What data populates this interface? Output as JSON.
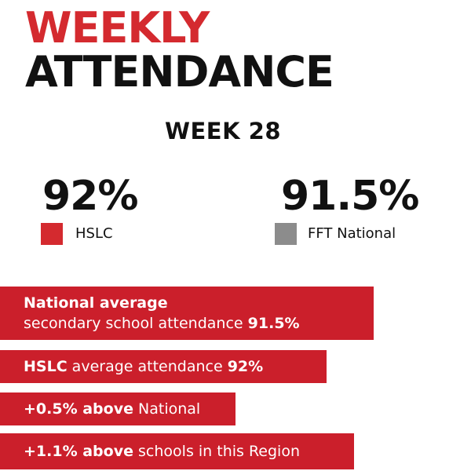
{
  "title": {
    "line1": "WEEKLY",
    "line2": "ATTENDANCE"
  },
  "week": "WEEK 28",
  "stats": {
    "hslc": {
      "value": "92%",
      "label": "HSLC"
    },
    "national": {
      "value": "91.5%",
      "label": "FFT National"
    }
  },
  "colors": {
    "accent_red": "#d42a2f",
    "bar_red": "#cb1f2b",
    "national_grey": "#8c8c8c",
    "text_dark": "#111111"
  },
  "bars": {
    "national_average": {
      "heading": "National average",
      "text": "secondary school attendance ",
      "value": "91.5%"
    },
    "hslc_average": {
      "lead": "HSLC",
      "text": " average attendance ",
      "value": "92%"
    },
    "above_national": {
      "lead": "+0.5% above",
      "text": " National"
    },
    "above_region": {
      "lead": "+1.1% above",
      "text": " schools in this Region"
    }
  }
}
